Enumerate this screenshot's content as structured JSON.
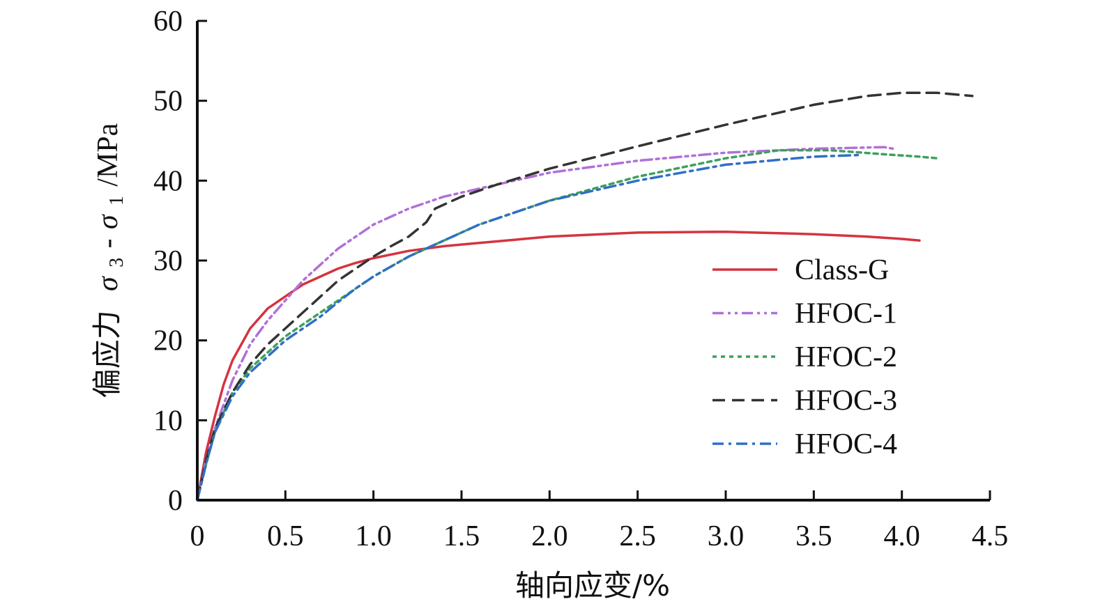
{
  "chart_data": {
    "type": "line",
    "xlabel": "轴向应变/%",
    "ylabel_prefix": "偏应力",
    "ylabel_sigma_a": "σ",
    "ylabel_sub_a": "3",
    "ylabel_dash": "-",
    "ylabel_sigma_b": "σ",
    "ylabel_sub_b": "1",
    "ylabel_unit": "/MPa",
    "xlim": [
      0,
      4.5
    ],
    "ylim": [
      0,
      60
    ],
    "x_ticks": [
      0,
      0.5,
      1.0,
      1.5,
      2.0,
      2.5,
      3.0,
      3.5,
      4.0,
      4.5
    ],
    "x_tick_labels": [
      "0",
      "0.5",
      "1.0",
      "1.5",
      "2.0",
      "2.5",
      "3.0",
      "3.5",
      "4.0",
      "4.5"
    ],
    "y_ticks": [
      0,
      10,
      20,
      30,
      40,
      50,
      60
    ],
    "y_tick_labels": [
      "0",
      "10",
      "20",
      "30",
      "40",
      "50",
      "60"
    ],
    "grid": false,
    "legend_position": "lower-right",
    "series": [
      {
        "name": "Class-G",
        "color": "#d4343f",
        "dash": "solid",
        "points": [
          [
            0,
            0
          ],
          [
            0.05,
            6
          ],
          [
            0.1,
            10.5
          ],
          [
            0.15,
            14.5
          ],
          [
            0.2,
            17.5
          ],
          [
            0.3,
            21.5
          ],
          [
            0.4,
            24
          ],
          [
            0.5,
            25.5
          ],
          [
            0.6,
            27
          ],
          [
            0.7,
            28
          ],
          [
            0.8,
            29
          ],
          [
            0.9,
            29.7
          ],
          [
            1.0,
            30.3
          ],
          [
            1.2,
            31.2
          ],
          [
            1.4,
            31.8
          ],
          [
            1.6,
            32.2
          ],
          [
            1.8,
            32.6
          ],
          [
            2.0,
            33
          ],
          [
            2.5,
            33.5
          ],
          [
            3.0,
            33.6
          ],
          [
            3.5,
            33.3
          ],
          [
            3.8,
            33
          ],
          [
            4.0,
            32.7
          ],
          [
            4.1,
            32.5
          ]
        ]
      },
      {
        "name": "HFOC-1",
        "color": "#b070d8",
        "dash": "dashdotdot",
        "points": [
          [
            0,
            0
          ],
          [
            0.05,
            5
          ],
          [
            0.1,
            9
          ],
          [
            0.2,
            15
          ],
          [
            0.3,
            19.5
          ],
          [
            0.4,
            22.5
          ],
          [
            0.5,
            25
          ],
          [
            0.6,
            27.5
          ],
          [
            0.7,
            29.5
          ],
          [
            0.8,
            31.5
          ],
          [
            0.9,
            33
          ],
          [
            1.0,
            34.5
          ],
          [
            1.2,
            36.5
          ],
          [
            1.4,
            38
          ],
          [
            1.6,
            39
          ],
          [
            1.8,
            40
          ],
          [
            2.0,
            41
          ],
          [
            2.5,
            42.5
          ],
          [
            3.0,
            43.5
          ],
          [
            3.5,
            44
          ],
          [
            3.9,
            44.2
          ],
          [
            3.95,
            44
          ]
        ]
      },
      {
        "name": "HFOC-2",
        "color": "#3ea05a",
        "dash": "dotted",
        "points": [
          [
            0,
            0
          ],
          [
            0.05,
            4.5
          ],
          [
            0.1,
            8.5
          ],
          [
            0.2,
            13.5
          ],
          [
            0.3,
            16.5
          ],
          [
            0.4,
            18.5
          ],
          [
            0.5,
            20.5
          ],
          [
            0.6,
            22
          ],
          [
            0.7,
            23.5
          ],
          [
            0.8,
            25
          ],
          [
            0.9,
            26.5
          ],
          [
            1.0,
            28
          ],
          [
            1.2,
            30.5
          ],
          [
            1.4,
            32.5
          ],
          [
            1.6,
            34.5
          ],
          [
            1.8,
            36
          ],
          [
            2.0,
            37.5
          ],
          [
            2.5,
            40.5
          ],
          [
            3.0,
            42.8
          ],
          [
            3.3,
            43.8
          ],
          [
            3.6,
            43.8
          ],
          [
            3.9,
            43.3
          ],
          [
            4.1,
            43
          ],
          [
            4.2,
            42.8
          ]
        ]
      },
      {
        "name": "HFOC-3",
        "color": "#333333",
        "dash": "dashed",
        "points": [
          [
            0,
            0
          ],
          [
            0.05,
            5
          ],
          [
            0.1,
            9
          ],
          [
            0.2,
            13.5
          ],
          [
            0.3,
            17
          ],
          [
            0.4,
            19.5
          ],
          [
            0.5,
            21.5
          ],
          [
            0.6,
            23.5
          ],
          [
            0.7,
            25.5
          ],
          [
            0.8,
            27.5
          ],
          [
            0.9,
            29
          ],
          [
            1.0,
            30.5
          ],
          [
            1.1,
            31.8
          ],
          [
            1.2,
            33
          ],
          [
            1.3,
            34.8
          ],
          [
            1.35,
            36.5
          ],
          [
            1.5,
            38
          ],
          [
            1.7,
            39.5
          ],
          [
            2.0,
            41.5
          ],
          [
            2.5,
            44.3
          ],
          [
            3.0,
            47
          ],
          [
            3.5,
            49.5
          ],
          [
            3.8,
            50.6
          ],
          [
            4.0,
            51
          ],
          [
            4.2,
            51
          ],
          [
            4.4,
            50.6
          ]
        ]
      },
      {
        "name": "HFOC-4",
        "color": "#2f6fc7",
        "dash": "dashdot",
        "points": [
          [
            0,
            0
          ],
          [
            0.05,
            4.5
          ],
          [
            0.1,
            8.5
          ],
          [
            0.2,
            13
          ],
          [
            0.3,
            16
          ],
          [
            0.4,
            18
          ],
          [
            0.5,
            20
          ],
          [
            0.6,
            21.5
          ],
          [
            0.7,
            23
          ],
          [
            0.8,
            24.8
          ],
          [
            0.9,
            26.5
          ],
          [
            1.0,
            28
          ],
          [
            1.2,
            30.5
          ],
          [
            1.4,
            32.5
          ],
          [
            1.6,
            34.5
          ],
          [
            1.8,
            36
          ],
          [
            2.0,
            37.5
          ],
          [
            2.5,
            40
          ],
          [
            3.0,
            42
          ],
          [
            3.5,
            43
          ],
          [
            3.75,
            43.2
          ]
        ]
      }
    ]
  }
}
